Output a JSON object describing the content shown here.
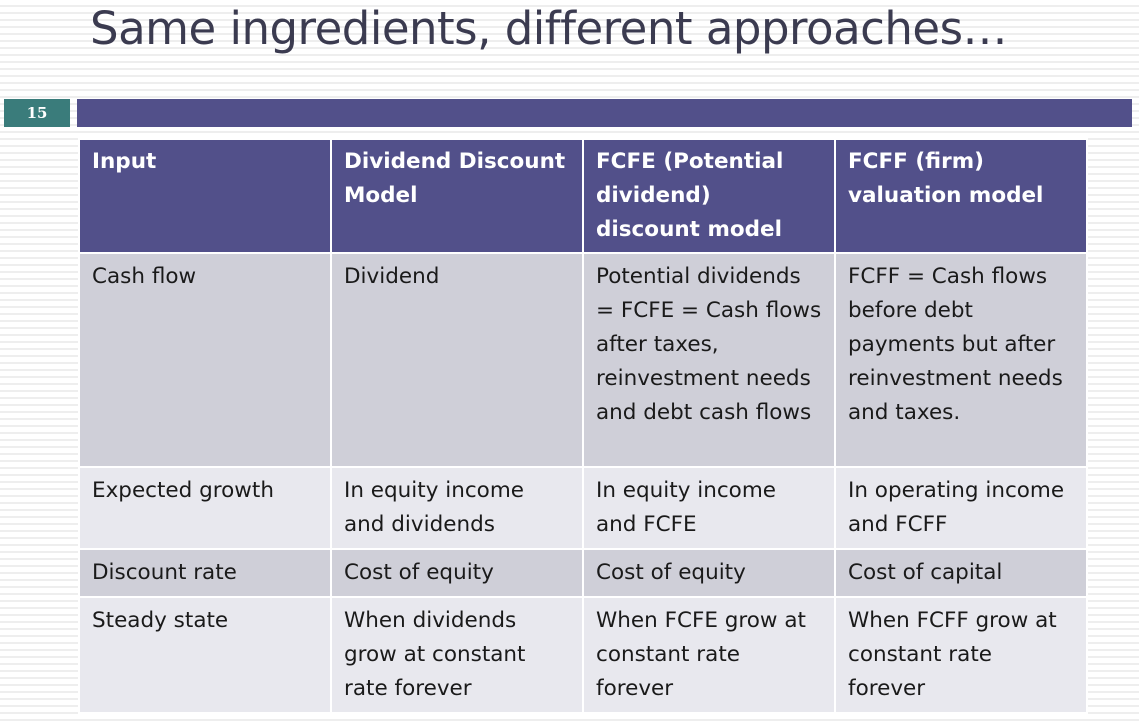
{
  "slide": {
    "title": "Same ingredients, different approaches…",
    "number": "15"
  },
  "table": {
    "headers": [
      "Input",
      "Dividend Discount Model",
      "FCFE (Potential dividend) discount model",
      "FCFF (firm) valuation model"
    ],
    "rows": [
      {
        "label": "Cash flow",
        "cells": [
          "Dividend",
          "Potential dividends = FCFE = Cash flows after taxes, reinvestment needs and debt cash flows",
          "FCFF = Cash flows before debt payments but after reinvestment needs and taxes."
        ]
      },
      {
        "label": "Expected growth",
        "cells": [
          "In equity income and  dividends",
          "In equity income and FCFE",
          "In operating income and FCFF"
        ]
      },
      {
        "label": "Discount rate",
        "cells": [
          "Cost of equity",
          "Cost of equity",
          "Cost of capital"
        ]
      },
      {
        "label": "Steady state",
        "cells": [
          "When dividends grow at constant rate forever",
          "When FCFE grow at constant rate forever",
          "When FCFF grow at constant rate forever"
        ]
      }
    ]
  },
  "colors": {
    "header_bar": "#52508a",
    "slide_number_bg": "#3a7c7b",
    "row_dark": "#cfcfd8",
    "row_light": "#e8e8ee",
    "title_text": "#3b3b50"
  }
}
